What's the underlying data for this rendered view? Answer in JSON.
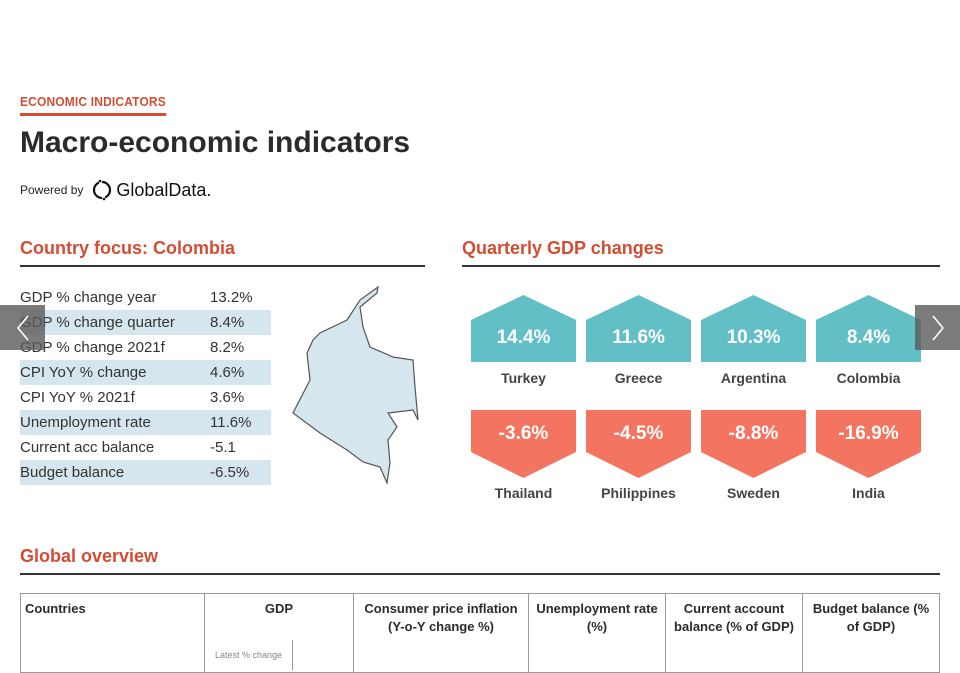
{
  "header": {
    "kicker": "ECONOMIC INDICATORS",
    "title": "Macro-economic indicators",
    "powered_by": "Powered by",
    "logo_text": "GlobalData."
  },
  "focus": {
    "heading": "Country focus: Colombia",
    "rows": [
      {
        "label": "GDP % change year",
        "value": "13.2%"
      },
      {
        "label": "GDP % change quarter",
        "value": "8.4%"
      },
      {
        "label": "GDP % change 2021f",
        "value": "8.2%"
      },
      {
        "label": "CPI YoY % change",
        "value": "4.6%"
      },
      {
        "label": "CPI YoY % 2021f",
        "value": "3.6%"
      },
      {
        "label": "Unemployment rate",
        "value": "11.6%"
      },
      {
        "label": "Current acc balance",
        "value": "-5.1"
      },
      {
        "label": "Budget balance",
        "value": "-6.5%"
      }
    ],
    "map_fill": "#d6e6ef"
  },
  "quarterly": {
    "heading": "Quarterly GDP changes",
    "positive_color": "#62bfc6",
    "negative_color": "#f47462",
    "top": [
      {
        "value": "14.4%",
        "country": "Turkey"
      },
      {
        "value": "11.6%",
        "country": "Greece"
      },
      {
        "value": "10.3%",
        "country": "Argentina"
      },
      {
        "value": "8.4%",
        "country": "Colombia"
      }
    ],
    "bottom": [
      {
        "value": "-3.6%",
        "country": "Thailand"
      },
      {
        "value": "-4.5%",
        "country": "Philippines"
      },
      {
        "value": "-8.8%",
        "country": "Sweden"
      },
      {
        "value": "-16.9%",
        "country": "India"
      }
    ]
  },
  "global": {
    "heading": "Global overview",
    "columns": [
      "Countries",
      "GDP",
      "Consumer price inflation (Y-o-Y change %)",
      "Unemployment rate (%)",
      "Current account balance (% of GDP)",
      "Budget balance (% of GDP)"
    ],
    "gdp_sub": "Latest % change"
  },
  "accent": "#d24d33"
}
